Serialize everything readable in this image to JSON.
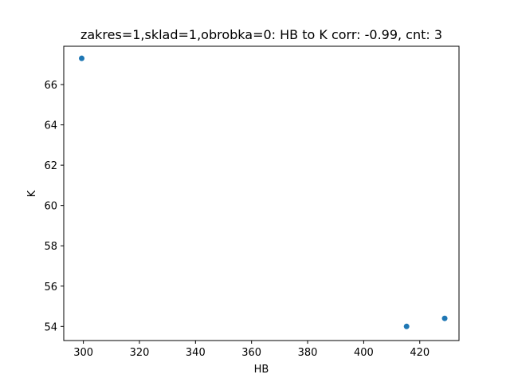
{
  "chart_data": {
    "type": "scatter",
    "title": "zakres=1,sklad=1,obrobka=0: HB to K corr: -0.99, cnt: 3",
    "xlabel": "HB",
    "ylabel": "K",
    "xlim": [
      293,
      434
    ],
    "ylim": [
      53.3,
      67.9
    ],
    "x_ticks": [
      300,
      320,
      340,
      360,
      380,
      400,
      420
    ],
    "x_tick_labels": [
      "300",
      "320",
      "340",
      "360",
      "380",
      "400",
      "420"
    ],
    "y_ticks": [
      54,
      56,
      58,
      60,
      62,
      64,
      66
    ],
    "y_tick_labels": [
      "54",
      "56",
      "58",
      "60",
      "62",
      "64",
      "66"
    ],
    "grid": false,
    "marker_color": "#1f77b4",
    "points": [
      {
        "x": 299.4,
        "y": 67.3
      },
      {
        "x": 415.3,
        "y": 54.0
      },
      {
        "x": 428.9,
        "y": 54.4
      }
    ]
  }
}
